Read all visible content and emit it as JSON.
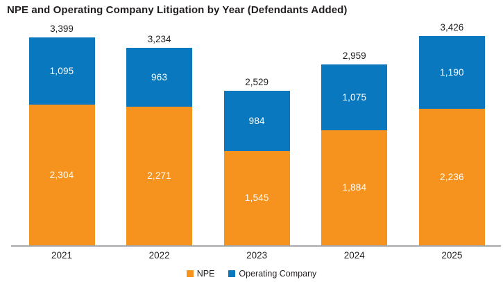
{
  "title": "NPE and Operating Company Litigation by Year (Defendants Added)",
  "colors": {
    "npe": "#f6921e",
    "operating_company": "#0a78be",
    "axis_line": "#a6a8ab",
    "text": "#231f20",
    "bar_value_text": "#ffffff",
    "background": "#ffffff"
  },
  "legend": {
    "items": [
      {
        "label": "NPE",
        "color": "#f6921e"
      },
      {
        "label": "Operating Company",
        "color": "#0a78be"
      }
    ],
    "position": "bottom-center"
  },
  "chart_data": {
    "type": "bar",
    "stacked": true,
    "title": "NPE and Operating Company Litigation by Year (Defendants Added)",
    "categories": [
      "2021",
      "2022",
      "2023",
      "2024",
      "2025"
    ],
    "series": [
      {
        "name": "NPE",
        "color": "#f6921e",
        "values": [
          2304,
          2271,
          1545,
          1884,
          2236
        ]
      },
      {
        "name": "Operating Company",
        "color": "#0a78be",
        "values": [
          1095,
          963,
          984,
          1075,
          1190
        ]
      }
    ],
    "totals": [
      3399,
      3234,
      2529,
      2959,
      3426
    ],
    "xlabel": "",
    "ylabel": "",
    "ylim": [
      0,
      3600
    ],
    "grid": false,
    "legend_position": "bottom",
    "value_label_style": "segment values centered inside bars in white; totals above bars in dark text; thousands separators"
  }
}
